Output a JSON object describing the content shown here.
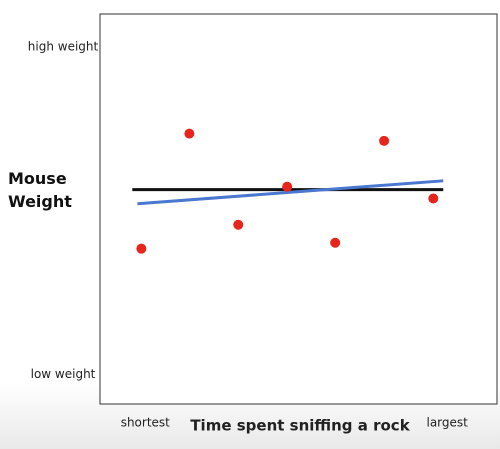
{
  "chart_data": {
    "type": "scatter",
    "xlabel": "Time spent sniffing a rock",
    "ylabel": "Mouse Weight",
    "xlim": [
      -1.5,
      11.65
    ],
    "ylim": [
      -0.9,
      11
    ],
    "xticks": [
      {
        "value": 0,
        "label": "shortest"
      },
      {
        "value": 10,
        "label": "largest"
      }
    ],
    "yticks": [
      {
        "value": 0,
        "label": "low weight"
      },
      {
        "value": 10,
        "label": "high weight"
      }
    ],
    "x": [
      -0.13,
      1.46,
      3.08,
      4.7,
      6.29,
      7.91,
      9.54
    ],
    "values": [
      3.84,
      7.35,
      4.57,
      5.73,
      4.02,
      7.13,
      5.37
    ],
    "color": "#e8251c",
    "lines": [
      {
        "color": "#111111",
        "x": [
          -0.43,
          9.87
        ],
        "values": [
          5.64,
          5.64
        ]
      },
      {
        "color": "#4a78d0",
        "x": [
          -0.26,
          9.87
        ],
        "values": [
          5.21,
          5.91
        ]
      }
    ]
  }
}
